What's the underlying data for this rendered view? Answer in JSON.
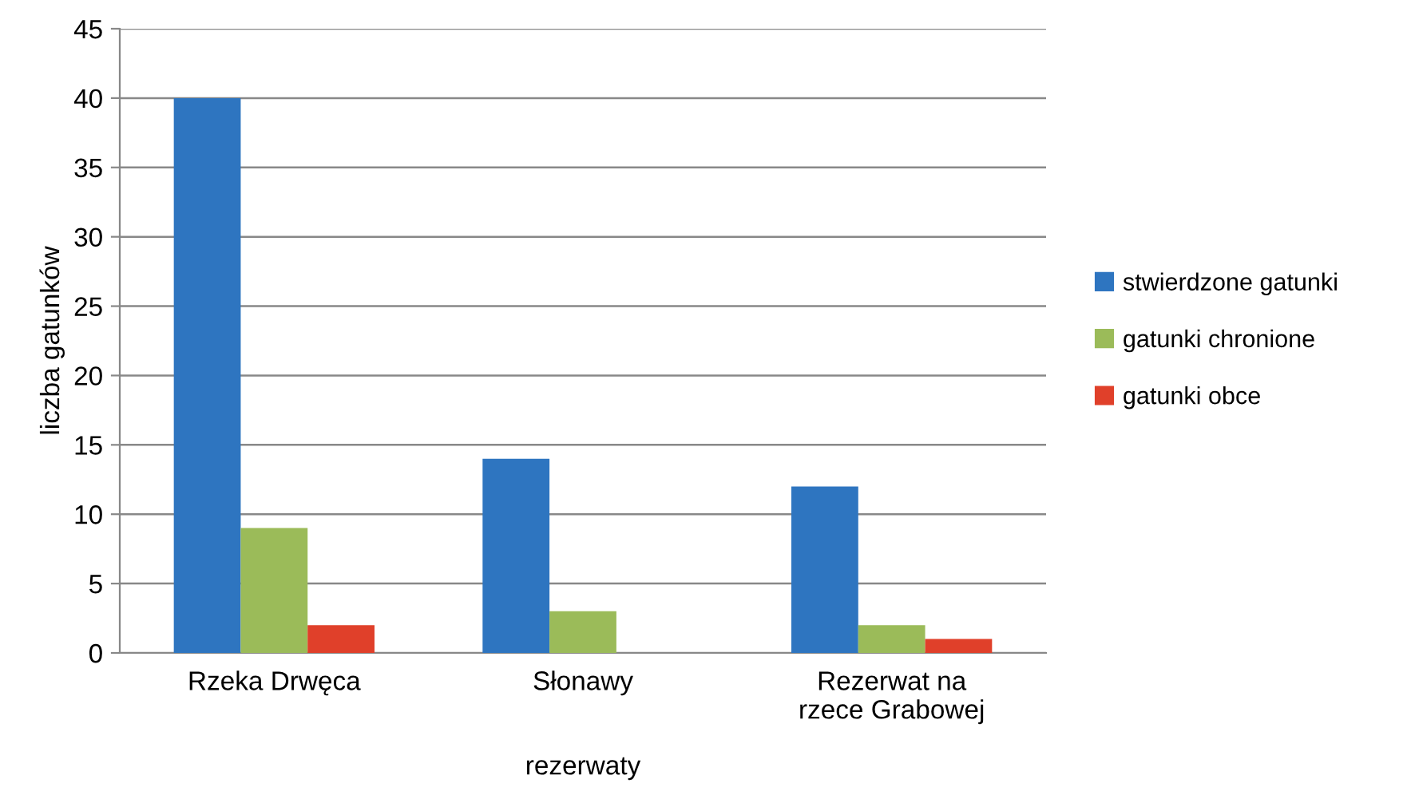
{
  "chart_data": {
    "type": "bar",
    "xlabel": "rezerwaty",
    "ylabel": "liczba gatunków",
    "categories": [
      "Rzeka Drwęca",
      "Słonawy",
      "Rezerwat na\nrzece Grabowej"
    ],
    "series": [
      {
        "name": "stwierdzone gatunki",
        "color": "#2e75c0",
        "values": [
          40,
          14,
          12
        ]
      },
      {
        "name": "gatunki chronione",
        "color": "#9bbb59",
        "values": [
          9,
          3,
          2
        ]
      },
      {
        "name": "gatunki obce",
        "color": "#e0402a",
        "values": [
          2,
          0,
          1
        ]
      }
    ],
    "ylim": [
      0,
      45
    ],
    "yticks": [
      0,
      5,
      10,
      15,
      20,
      25,
      30,
      35,
      40,
      45
    ],
    "grid": "y",
    "legend": "right"
  }
}
